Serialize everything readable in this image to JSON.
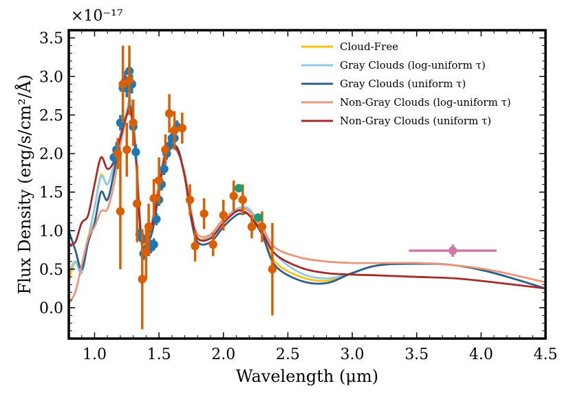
{
  "chart_data": {
    "type": "line",
    "xlabel": "Wavelength (μm)",
    "ylabel": "Flux Density (erg/s/cm²/Å)",
    "y_multiplier": "×10⁻¹⁷",
    "xlim": [
      0.8,
      4.5
    ],
    "ylim": [
      -0.4,
      3.6
    ],
    "xticks": [
      "1.0",
      "1.5",
      "2.0",
      "2.5",
      "3.0",
      "3.5",
      "4.0",
      "4.5"
    ],
    "yticks": [
      "0.0",
      "0.5",
      "1.0",
      "1.5",
      "2.0",
      "2.5",
      "3.0",
      "3.5"
    ],
    "legend_position": "top-right",
    "series": [
      {
        "name": "Cloud-Free",
        "color": "#F5C211",
        "x": [
          0.8,
          0.85,
          0.9,
          0.95,
          1.0,
          1.05,
          1.1,
          1.15,
          1.2,
          1.25,
          1.28,
          1.32,
          1.36,
          1.4,
          1.45,
          1.5,
          1.55,
          1.6,
          1.65,
          1.7,
          1.75,
          1.8,
          1.9,
          2.0,
          2.1,
          2.15,
          2.2,
          2.3,
          2.4,
          2.6,
          2.8,
          3.0,
          3.2,
          3.5,
          3.8,
          4.1,
          4.5
        ],
        "y": [
          0.35,
          0.6,
          0.5,
          0.9,
          1.3,
          1.72,
          1.6,
          1.85,
          2.2,
          2.5,
          2.6,
          2.0,
          0.95,
          0.85,
          1.05,
          1.55,
          2.0,
          2.1,
          2.05,
          1.7,
          1.2,
          0.9,
          0.95,
          1.15,
          1.25,
          1.28,
          1.25,
          1.0,
          0.6,
          0.4,
          0.35,
          0.45,
          0.55,
          0.58,
          0.55,
          0.45,
          0.25
        ]
      },
      {
        "name": "Gray Clouds (log-uniform τ)",
        "color": "#8ECAE6",
        "x": [
          0.8,
          0.85,
          0.9,
          0.95,
          1.0,
          1.05,
          1.1,
          1.15,
          1.2,
          1.25,
          1.28,
          1.32,
          1.36,
          1.4,
          1.45,
          1.5,
          1.55,
          1.6,
          1.65,
          1.7,
          1.75,
          1.8,
          1.9,
          2.0,
          2.1,
          2.15,
          2.2,
          2.3,
          2.4,
          2.6,
          2.8,
          3.0,
          3.2,
          3.5,
          3.8,
          4.1,
          4.5
        ],
        "y": [
          0.45,
          0.6,
          0.45,
          0.85,
          1.3,
          1.7,
          1.6,
          1.85,
          2.25,
          2.55,
          2.7,
          2.1,
          1.0,
          0.9,
          1.1,
          1.6,
          2.05,
          2.12,
          2.05,
          1.7,
          1.2,
          0.9,
          0.92,
          1.15,
          1.28,
          1.3,
          1.28,
          1.05,
          0.7,
          0.45,
          0.38,
          0.45,
          0.55,
          0.58,
          0.55,
          0.45,
          0.25
        ]
      },
      {
        "name": "Gray Clouds (uniform τ)",
        "color": "#2C5F87",
        "x": [
          0.8,
          0.85,
          0.9,
          0.95,
          1.0,
          1.05,
          1.1,
          1.15,
          1.2,
          1.25,
          1.28,
          1.32,
          1.36,
          1.4,
          1.45,
          1.5,
          1.55,
          1.6,
          1.65,
          1.7,
          1.75,
          1.8,
          1.9,
          2.0,
          2.1,
          2.15,
          2.2,
          2.3,
          2.4,
          2.6,
          2.8,
          3.0,
          3.2,
          3.5,
          3.8,
          4.1,
          4.5
        ],
        "y": [
          1.0,
          0.75,
          0.5,
          0.85,
          1.1,
          1.5,
          1.4,
          1.75,
          2.2,
          2.5,
          2.6,
          2.0,
          0.9,
          0.82,
          1.0,
          1.5,
          2.0,
          2.1,
          2.05,
          1.7,
          1.15,
          0.85,
          0.85,
          1.05,
          1.2,
          1.22,
          1.2,
          0.95,
          0.55,
          0.35,
          0.32,
          0.45,
          0.55,
          0.57,
          0.55,
          0.45,
          0.25
        ]
      },
      {
        "name": "Non-Gray Clouds (log-uniform τ)",
        "color": "#E9967A",
        "x": [
          0.8,
          0.85,
          0.9,
          0.95,
          1.0,
          1.05,
          1.1,
          1.15,
          1.2,
          1.25,
          1.28,
          1.32,
          1.36,
          1.4,
          1.45,
          1.5,
          1.55,
          1.6,
          1.65,
          1.7,
          1.75,
          1.8,
          1.9,
          2.0,
          2.1,
          2.15,
          2.2,
          2.3,
          2.4,
          2.6,
          2.8,
          3.0,
          3.2,
          3.5,
          3.8,
          4.1,
          4.5
        ],
        "y": [
          0.05,
          0.2,
          0.55,
          0.9,
          1.05,
          1.25,
          1.28,
          1.6,
          2.1,
          2.5,
          2.55,
          2.0,
          1.0,
          0.95,
          1.15,
          1.6,
          2.0,
          2.08,
          2.0,
          1.75,
          1.25,
          0.95,
          0.95,
          1.15,
          1.25,
          1.28,
          1.25,
          1.05,
          0.78,
          0.65,
          0.6,
          0.58,
          0.58,
          0.58,
          0.55,
          0.48,
          0.33
        ]
      },
      {
        "name": "Non-Gray Clouds (uniform τ)",
        "color": "#A52A2A",
        "x": [
          0.8,
          0.85,
          0.9,
          0.95,
          1.0,
          1.05,
          1.1,
          1.15,
          1.2,
          1.25,
          1.28,
          1.32,
          1.36,
          1.4,
          1.45,
          1.5,
          1.55,
          1.6,
          1.65,
          1.7,
          1.75,
          1.8,
          1.9,
          2.0,
          2.1,
          2.15,
          2.2,
          2.3,
          2.4,
          2.6,
          2.8,
          3.0,
          3.2,
          3.5,
          3.8,
          4.1,
          4.5
        ],
        "y": [
          0.82,
          0.85,
          1.1,
          1.2,
          1.6,
          1.95,
          1.8,
          1.9,
          2.2,
          2.5,
          2.55,
          1.95,
          0.95,
          0.9,
          1.1,
          1.55,
          2.0,
          2.1,
          2.02,
          1.7,
          1.2,
          0.9,
          0.9,
          1.1,
          1.25,
          1.25,
          1.2,
          0.98,
          0.7,
          0.52,
          0.45,
          0.43,
          0.42,
          0.4,
          0.38,
          0.33,
          0.25
        ]
      }
    ],
    "observations": [
      {
        "name": "Blue Spectrum Points",
        "color": "#1F77B4",
        "points": [
          {
            "x": 1.15,
            "y": 1.95,
            "err": 0.1
          },
          {
            "x": 1.17,
            "y": 2.05,
            "err": 0.1
          },
          {
            "x": 1.2,
            "y": 2.4,
            "err": 0.1
          },
          {
            "x": 1.22,
            "y": 2.85,
            "err": 0.12
          },
          {
            "x": 1.24,
            "y": 2.95,
            "err": 0.12
          },
          {
            "x": 1.25,
            "y": 2.85,
            "err": 0.12
          },
          {
            "x": 1.27,
            "y": 3.07,
            "err": 0.12
          },
          {
            "x": 1.28,
            "y": 2.9,
            "err": 0.12
          },
          {
            "x": 1.29,
            "y": 2.9,
            "err": 0.12
          },
          {
            "x": 1.3,
            "y": 2.35,
            "err": 0.12
          },
          {
            "x": 1.32,
            "y": 2.02,
            "err": 0.1
          },
          {
            "x": 1.35,
            "y": 0.95,
            "err": 0.08
          },
          {
            "x": 1.37,
            "y": 0.9,
            "err": 0.08
          },
          {
            "x": 1.38,
            "y": 0.7,
            "err": 0.08
          },
          {
            "x": 1.4,
            "y": 0.72,
            "err": 0.08
          },
          {
            "x": 1.42,
            "y": 0.75,
            "err": 0.08
          },
          {
            "x": 1.44,
            "y": 0.8,
            "err": 0.08
          },
          {
            "x": 1.46,
            "y": 0.82,
            "err": 0.08
          },
          {
            "x": 1.48,
            "y": 1.15,
            "err": 0.08
          },
          {
            "x": 1.5,
            "y": 1.4,
            "err": 0.08
          },
          {
            "x": 1.52,
            "y": 1.6,
            "err": 0.08
          },
          {
            "x": 1.54,
            "y": 1.8,
            "err": 0.08
          },
          {
            "x": 1.56,
            "y": 2.0,
            "err": 0.08
          },
          {
            "x": 1.58,
            "y": 2.1,
            "err": 0.08
          },
          {
            "x": 1.6,
            "y": 2.2,
            "err": 0.08
          },
          {
            "x": 1.62,
            "y": 2.2,
            "err": 0.08
          },
          {
            "x": 1.64,
            "y": 2.35,
            "err": 0.08
          }
        ]
      },
      {
        "name": "Orange Photometry Points",
        "color": "#D95F02",
        "points": [
          {
            "x": 1.18,
            "y": 2.0,
            "err": 0.2
          },
          {
            "x": 1.2,
            "y": 1.25,
            "err": 0.75
          },
          {
            "x": 1.22,
            "y": 2.9,
            "err": 0.5
          },
          {
            "x": 1.25,
            "y": 2.05,
            "err": 0.35
          },
          {
            "x": 1.27,
            "y": 2.95,
            "err": 0.45
          },
          {
            "x": 1.3,
            "y": 2.4,
            "err": 0.3
          },
          {
            "x": 1.33,
            "y": 1.35,
            "err": 0.5
          },
          {
            "x": 1.37,
            "y": 0.37,
            "err": 0.65
          },
          {
            "x": 1.4,
            "y": 0.72,
            "err": 0.35
          },
          {
            "x": 1.42,
            "y": 1.05,
            "err": 0.3
          },
          {
            "x": 1.46,
            "y": 1.42,
            "err": 0.25
          },
          {
            "x": 1.5,
            "y": 1.65,
            "err": 0.3
          },
          {
            "x": 1.55,
            "y": 2.05,
            "err": 0.2
          },
          {
            "x": 1.58,
            "y": 2.52,
            "err": 0.25
          },
          {
            "x": 1.62,
            "y": 2.3,
            "err": 0.25
          },
          {
            "x": 1.68,
            "y": 2.33,
            "err": 0.2
          },
          {
            "x": 1.74,
            "y": 1.4,
            "err": 0.2
          },
          {
            "x": 1.78,
            "y": 0.8,
            "err": 0.2
          },
          {
            "x": 1.85,
            "y": 1.22,
            "err": 0.2
          },
          {
            "x": 1.92,
            "y": 0.82,
            "err": 0.15
          },
          {
            "x": 2.0,
            "y": 1.2,
            "err": 0.2
          },
          {
            "x": 2.08,
            "y": 1.45,
            "err": 0.2
          },
          {
            "x": 2.15,
            "y": 1.4,
            "err": 0.2
          },
          {
            "x": 2.22,
            "y": 1.05,
            "err": 0.15
          },
          {
            "x": 2.3,
            "y": 1.05,
            "err": 0.2
          },
          {
            "x": 2.38,
            "y": 0.5,
            "err": 0.6
          }
        ]
      },
      {
        "name": "Green Points",
        "color": "#1B9E77",
        "points": [
          {
            "x": 2.12,
            "y": 1.55,
            "err": 0.05
          },
          {
            "x": 2.27,
            "y": 1.17,
            "err": 0.05
          }
        ]
      },
      {
        "name": "Pink Point",
        "color": "#CC79A7",
        "points": [
          {
            "x": 3.78,
            "y": 0.74,
            "err": 0.08,
            "xerr": 0.34
          }
        ]
      }
    ]
  }
}
